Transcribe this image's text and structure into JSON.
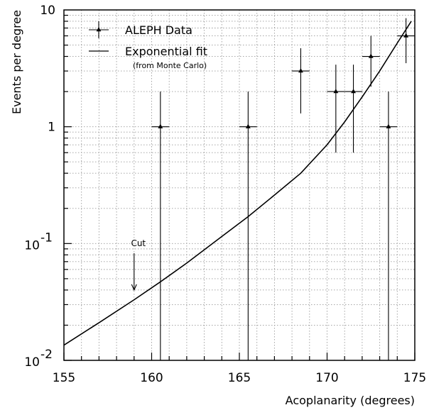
{
  "chart_data": {
    "type": "scatter",
    "xlabel": "Acoplanarity (degrees)",
    "ylabel": "Events per degree",
    "xlim": [
      155,
      175
    ],
    "ylim": [
      0.01,
      10
    ],
    "yscale": "log",
    "grid": true,
    "legend_position": "top-left",
    "x_ticks": [
      "155",
      "160",
      "165",
      "170",
      "175"
    ],
    "y_ticks": [
      {
        "base": "10",
        "exp": "-2"
      },
      {
        "base": "10",
        "exp": "-1"
      },
      {
        "base": "1",
        "exp": ""
      },
      {
        "base": "10",
        "exp": ""
      }
    ],
    "series": [
      {
        "name": "ALEPH Data",
        "style": "points-with-error-bars",
        "points": [
          {
            "x": 160.5,
            "y": 1.0,
            "ylow": 0.01,
            "yhigh": 2.0,
            "xerr": 0.5
          },
          {
            "x": 165.5,
            "y": 1.0,
            "ylow": 0.01,
            "yhigh": 2.0,
            "xerr": 0.5
          },
          {
            "x": 168.5,
            "y": 3.0,
            "ylow": 1.3,
            "yhigh": 4.7,
            "xerr": 0.5
          },
          {
            "x": 170.5,
            "y": 2.0,
            "ylow": 0.6,
            "yhigh": 3.4,
            "xerr": 0.5
          },
          {
            "x": 171.5,
            "y": 2.0,
            "ylow": 0.6,
            "yhigh": 3.4,
            "xerr": 0.5
          },
          {
            "x": 172.5,
            "y": 4.0,
            "ylow": 2.2,
            "yhigh": 6.0,
            "xerr": 0.5
          },
          {
            "x": 173.5,
            "y": 1.0,
            "ylow": 0.01,
            "yhigh": 2.0,
            "xerr": 0.5
          },
          {
            "x": 174.5,
            "y": 6.0,
            "ylow": 3.5,
            "yhigh": 8.5,
            "xerr": 0.5
          }
        ]
      },
      {
        "name": "Exponential fit",
        "subtitle": "(from Monte Carlo)",
        "style": "line",
        "points": [
          {
            "x": 155.0,
            "y": 0.0135
          },
          {
            "x": 157.0,
            "y": 0.021
          },
          {
            "x": 159.0,
            "y": 0.033
          },
          {
            "x": 160.5,
            "y": 0.047
          },
          {
            "x": 162.0,
            "y": 0.068
          },
          {
            "x": 164.0,
            "y": 0.115
          },
          {
            "x": 165.5,
            "y": 0.17
          },
          {
            "x": 167.0,
            "y": 0.26
          },
          {
            "x": 168.5,
            "y": 0.4
          },
          {
            "x": 170.0,
            "y": 0.7
          },
          {
            "x": 171.0,
            "y": 1.1
          },
          {
            "x": 172.0,
            "y": 1.8
          },
          {
            "x": 173.0,
            "y": 3.0
          },
          {
            "x": 174.0,
            "y": 5.2
          },
          {
            "x": 174.8,
            "y": 8.0
          }
        ]
      }
    ],
    "annotations": [
      {
        "text": "Cut",
        "x": 159.0,
        "y": 0.04,
        "label_y": 0.095
      }
    ]
  }
}
